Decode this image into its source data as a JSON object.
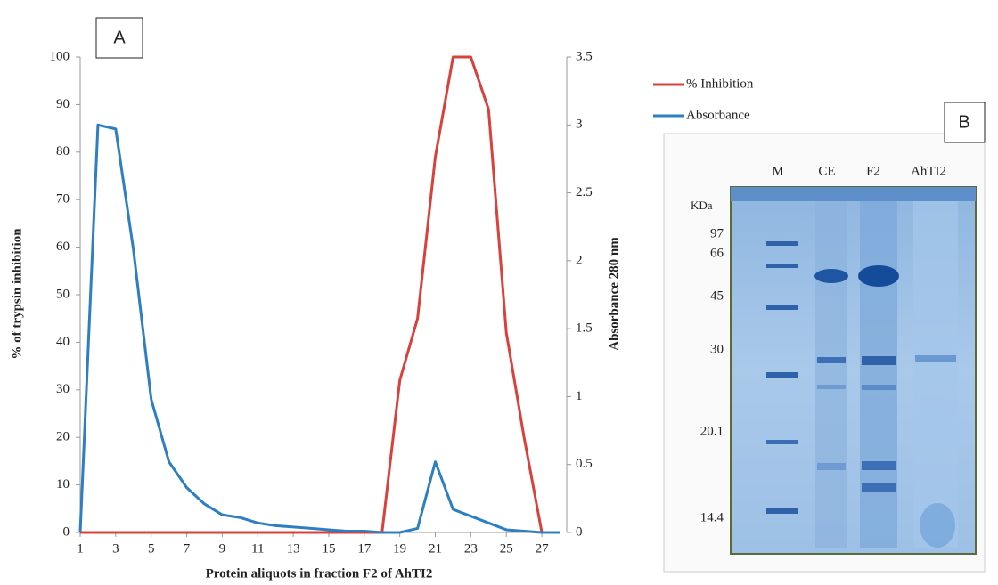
{
  "chart_data": {
    "type": "line",
    "panel_label": "A",
    "xlabel": "Protein aliquots in fraction F2 of AhTI2",
    "ylabel": "% of trypsin inhibition",
    "y2label": "Absorbance 280 nm",
    "x": [
      1,
      2,
      3,
      4,
      5,
      6,
      7,
      8,
      9,
      10,
      11,
      12,
      13,
      14,
      15,
      16,
      17,
      18,
      19,
      20,
      21,
      22,
      23,
      24,
      25,
      26,
      27,
      28
    ],
    "xlim": [
      1,
      28
    ],
    "xticks": [
      1,
      3,
      5,
      7,
      9,
      11,
      13,
      15,
      17,
      19,
      21,
      23,
      25,
      27
    ],
    "ylim": [
      0,
      100
    ],
    "yticks": [
      0,
      10,
      20,
      30,
      40,
      50,
      60,
      70,
      80,
      90,
      100
    ],
    "y2lim": [
      0,
      3.5
    ],
    "y2ticks": [
      0,
      0.5,
      1,
      1.5,
      2,
      2.5,
      3,
      3.5
    ],
    "legend": "right",
    "series": [
      {
        "name": "% Inhibition",
        "color": "#d9413c",
        "axis": "y",
        "values": [
          0,
          0,
          0,
          0,
          0,
          0,
          0,
          0,
          0,
          0,
          0,
          0,
          0,
          0,
          0,
          0,
          0,
          0,
          32,
          45,
          79,
          100,
          100,
          89,
          42,
          20,
          0,
          null
        ]
      },
      {
        "name": "Absorbance",
        "color": "#2e7fc1",
        "axis": "y2",
        "values": [
          0,
          3.0,
          2.97,
          2.08,
          0.98,
          0.52,
          0.33,
          0.21,
          0.13,
          0.11,
          0.07,
          0.05,
          0.04,
          0.03,
          0.02,
          0.01,
          0.01,
          0,
          0,
          0.03,
          0.52,
          0.17,
          0.12,
          0.07,
          0.02,
          0.01,
          0,
          0
        ]
      }
    ]
  },
  "gel": {
    "panel_label": "B",
    "lanes": [
      "M",
      "CE",
      "F2",
      "AhTI2"
    ],
    "unit": "KDa",
    "markers": [
      "97",
      "66",
      "45",
      "30",
      "20.1",
      "14.4"
    ]
  }
}
